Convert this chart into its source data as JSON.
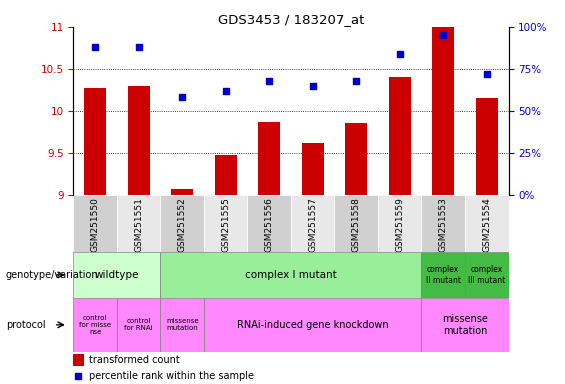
{
  "title": "GDS3453 / 183207_at",
  "samples": [
    "GSM251550",
    "GSM251551",
    "GSM251552",
    "GSM251555",
    "GSM251556",
    "GSM251557",
    "GSM251558",
    "GSM251559",
    "GSM251553",
    "GSM251554"
  ],
  "transformed_count": [
    10.27,
    10.3,
    9.07,
    9.47,
    9.87,
    9.62,
    9.85,
    10.4,
    11.0,
    10.15
  ],
  "percentile_rank": [
    88,
    88,
    58,
    62,
    68,
    65,
    68,
    84,
    95,
    72
  ],
  "ylim_left": [
    9.0,
    11.0
  ],
  "ylim_right": [
    0,
    100
  ],
  "bar_color": "#cc0000",
  "dot_color": "#0000cc",
  "left_tick_color": "#cc0000",
  "right_tick_color": "#0000cc",
  "title_color": "#000000",
  "bg_color": "#ffffff",
  "genotype_row": {
    "wildtype": {
      "cols": [
        0,
        1
      ],
      "color": "#ccffcc",
      "label": "wildtype"
    },
    "complex_I": {
      "cols": [
        2,
        3,
        4,
        5,
        6,
        7
      ],
      "color": "#99ee99",
      "label": "complex I mutant"
    },
    "complex_II": {
      "cols": [
        8
      ],
      "color": "#55cc55",
      "label": "complex\nII mutant"
    },
    "complex_III": {
      "cols": [
        9
      ],
      "color": "#55cc55",
      "label": "complex\nIII mutant"
    }
  },
  "protocol_row": {
    "ctrl_missense": {
      "cols": [
        0
      ],
      "color": "#ff88ff",
      "label": "control\nfor misse\nnse"
    },
    "ctrl_rnai": {
      "cols": [
        1
      ],
      "color": "#ff88ff",
      "label": "control\nfor RNAi"
    },
    "missense_mut": {
      "cols": [
        2
      ],
      "color": "#ff88ff",
      "label": "missense\nmutation"
    },
    "rnai": {
      "cols": [
        3,
        4,
        5,
        6,
        7
      ],
      "color": "#ff88ff",
      "label": "RNAi-induced gene knockdown"
    },
    "missense_mut2": {
      "cols": [
        8,
        9
      ],
      "color": "#ff88ff",
      "label": "missense\nmutation"
    }
  }
}
